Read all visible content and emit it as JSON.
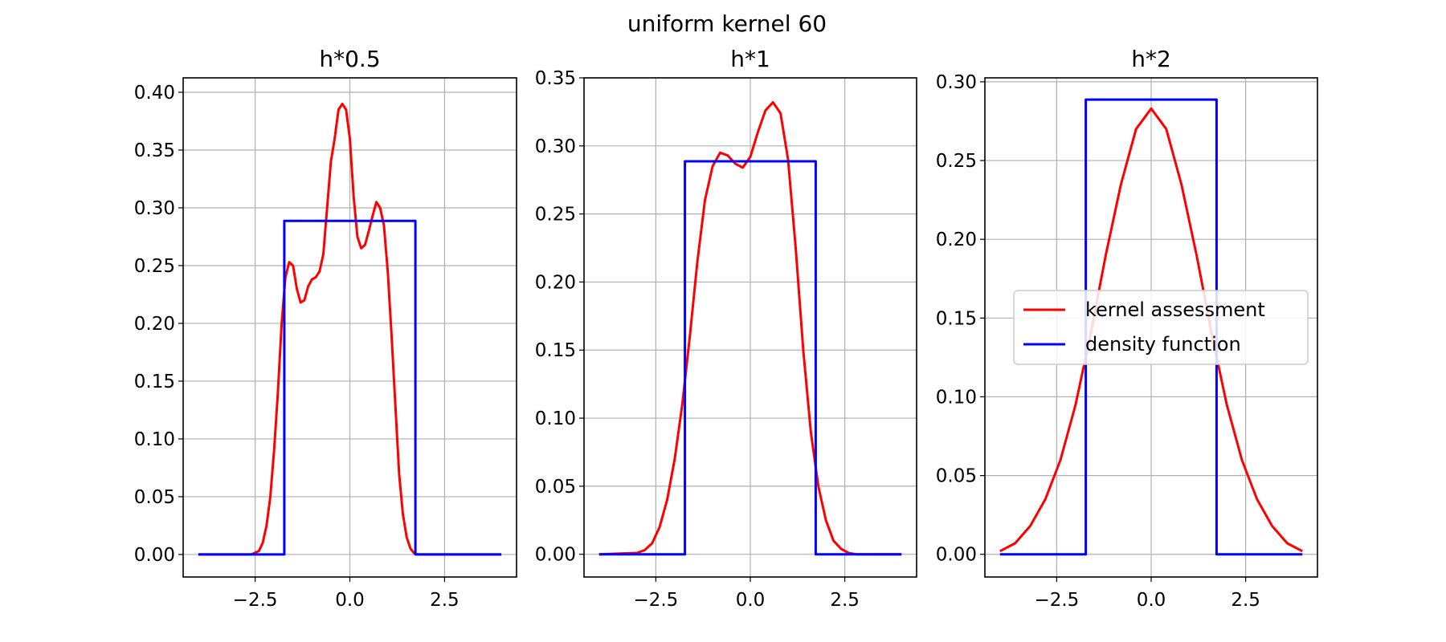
{
  "suptitle": "uniform kernel 60",
  "chart_data": [
    {
      "type": "line",
      "title": "h*0.5",
      "xlabel": "",
      "ylabel": "",
      "xlim": [
        -4.4,
        4.4
      ],
      "ylim": [
        -0.0195,
        0.4125
      ],
      "x_ticks": [
        -2.5,
        0.0,
        2.5
      ],
      "x_tick_labels": [
        "−2.5",
        "0.0",
        "2.5"
      ],
      "y_ticks": [
        0.0,
        0.05,
        0.1,
        0.15,
        0.2,
        0.25,
        0.3,
        0.35,
        0.4
      ],
      "y_tick_labels": [
        "0.00",
        "0.05",
        "0.10",
        "0.15",
        "0.20",
        "0.25",
        "0.30",
        "0.35",
        "0.40"
      ],
      "grid": true,
      "series": [
        {
          "name": "kernel assessment",
          "color": "#ff0000",
          "x": [
            -4,
            -2.6,
            -2.4,
            -2.3,
            -2.2,
            -2.1,
            -2.0,
            -1.9,
            -1.8,
            -1.7,
            -1.6,
            -1.5,
            -1.4,
            -1.3,
            -1.2,
            -1.1,
            -1.0,
            -0.9,
            -0.8,
            -0.7,
            -0.6,
            -0.5,
            -0.4,
            -0.3,
            -0.2,
            -0.1,
            0.0,
            0.1,
            0.2,
            0.3,
            0.4,
            0.5,
            0.6,
            0.7,
            0.8,
            0.9,
            1.0,
            1.1,
            1.2,
            1.3,
            1.4,
            1.5,
            1.6,
            1.7,
            1.8,
            1.9,
            2.0,
            2.1,
            2.2,
            2.3,
            2.4,
            4
          ],
          "values": [
            0,
            0,
            0.003,
            0.01,
            0.025,
            0.05,
            0.09,
            0.14,
            0.2,
            0.24,
            0.253,
            0.25,
            0.23,
            0.218,
            0.22,
            0.232,
            0.238,
            0.24,
            0.245,
            0.26,
            0.3,
            0.34,
            0.36,
            0.385,
            0.39,
            0.385,
            0.36,
            0.31,
            0.275,
            0.265,
            0.268,
            0.28,
            0.293,
            0.305,
            0.3,
            0.285,
            0.245,
            0.19,
            0.13,
            0.07,
            0.035,
            0.015,
            0.005,
            0.001,
            0,
            0,
            0,
            0,
            0,
            0,
            0,
            0
          ]
        },
        {
          "name": "density function",
          "color": "#0000ff",
          "x": [
            -4,
            -1.73,
            -1.73,
            1.73,
            1.73,
            4
          ],
          "values": [
            0,
            0,
            0.2887,
            0.2887,
            0,
            0
          ]
        }
      ]
    },
    {
      "type": "line",
      "title": "h*1",
      "xlabel": "",
      "ylabel": "",
      "xlim": [
        -4.4,
        4.4
      ],
      "ylim": [
        -0.0167,
        0.35
      ],
      "x_ticks": [
        -2.5,
        0.0,
        2.5
      ],
      "x_tick_labels": [
        "−2.5",
        "0.0",
        "2.5"
      ],
      "y_ticks": [
        0.0,
        0.05,
        0.1,
        0.15,
        0.2,
        0.25,
        0.3,
        0.35
      ],
      "y_tick_labels": [
        "0.00",
        "0.05",
        "0.10",
        "0.15",
        "0.20",
        "0.25",
        "0.30",
        "0.35"
      ],
      "grid": true,
      "series": [
        {
          "name": "kernel assessment",
          "color": "#ff0000",
          "x": [
            -4,
            -3.0,
            -2.8,
            -2.6,
            -2.4,
            -2.2,
            -2.0,
            -1.8,
            -1.6,
            -1.4,
            -1.2,
            -1.0,
            -0.8,
            -0.6,
            -0.4,
            -0.2,
            0.0,
            0.2,
            0.4,
            0.6,
            0.8,
            1.0,
            1.2,
            1.4,
            1.6,
            1.8,
            2.0,
            2.2,
            2.4,
            2.6,
            2.8,
            3.0,
            4
          ],
          "values": [
            0,
            0.001,
            0.003,
            0.008,
            0.02,
            0.04,
            0.07,
            0.11,
            0.16,
            0.215,
            0.26,
            0.285,
            0.295,
            0.293,
            0.287,
            0.284,
            0.292,
            0.31,
            0.326,
            0.332,
            0.324,
            0.29,
            0.225,
            0.15,
            0.09,
            0.05,
            0.025,
            0.01,
            0.004,
            0.001,
            0,
            0,
            0
          ]
        },
        {
          "name": "density function",
          "color": "#0000ff",
          "x": [
            -4,
            -1.73,
            -1.73,
            1.73,
            1.73,
            4
          ],
          "values": [
            0,
            0,
            0.2887,
            0.2887,
            0,
            0
          ]
        }
      ]
    },
    {
      "type": "line",
      "title": "h*2",
      "xlabel": "",
      "ylabel": "",
      "xlim": [
        -4.4,
        4.4
      ],
      "ylim": [
        -0.0144,
        0.3025
      ],
      "x_ticks": [
        -2.5,
        0.0,
        2.5
      ],
      "x_tick_labels": [
        "−2.5",
        "0.0",
        "2.5"
      ],
      "y_ticks": [
        0.0,
        0.05,
        0.1,
        0.15,
        0.2,
        0.25,
        0.3
      ],
      "y_tick_labels": [
        "0.00",
        "0.05",
        "0.10",
        "0.15",
        "0.20",
        "0.25",
        "0.30"
      ],
      "grid": true,
      "legend": {
        "position": "center-right",
        "entries": [
          "kernel assessment",
          "density function"
        ]
      },
      "series": [
        {
          "name": "kernel assessment",
          "color": "#ff0000",
          "x": [
            -4.0,
            -3.6,
            -3.2,
            -2.8,
            -2.4,
            -2.0,
            -1.6,
            -1.2,
            -0.8,
            -0.4,
            0.0,
            0.4,
            0.8,
            1.2,
            1.6,
            2.0,
            2.4,
            2.8,
            3.2,
            3.6,
            4.0
          ],
          "values": [
            0.002,
            0.007,
            0.018,
            0.035,
            0.06,
            0.095,
            0.14,
            0.19,
            0.235,
            0.27,
            0.283,
            0.27,
            0.235,
            0.19,
            0.14,
            0.095,
            0.06,
            0.035,
            0.018,
            0.007,
            0.002
          ]
        },
        {
          "name": "density function",
          "color": "#0000ff",
          "x": [
            -4,
            -1.73,
            -1.73,
            1.73,
            1.73,
            4
          ],
          "values": [
            0,
            0,
            0.2887,
            0.2887,
            0,
            0
          ]
        }
      ]
    }
  ]
}
